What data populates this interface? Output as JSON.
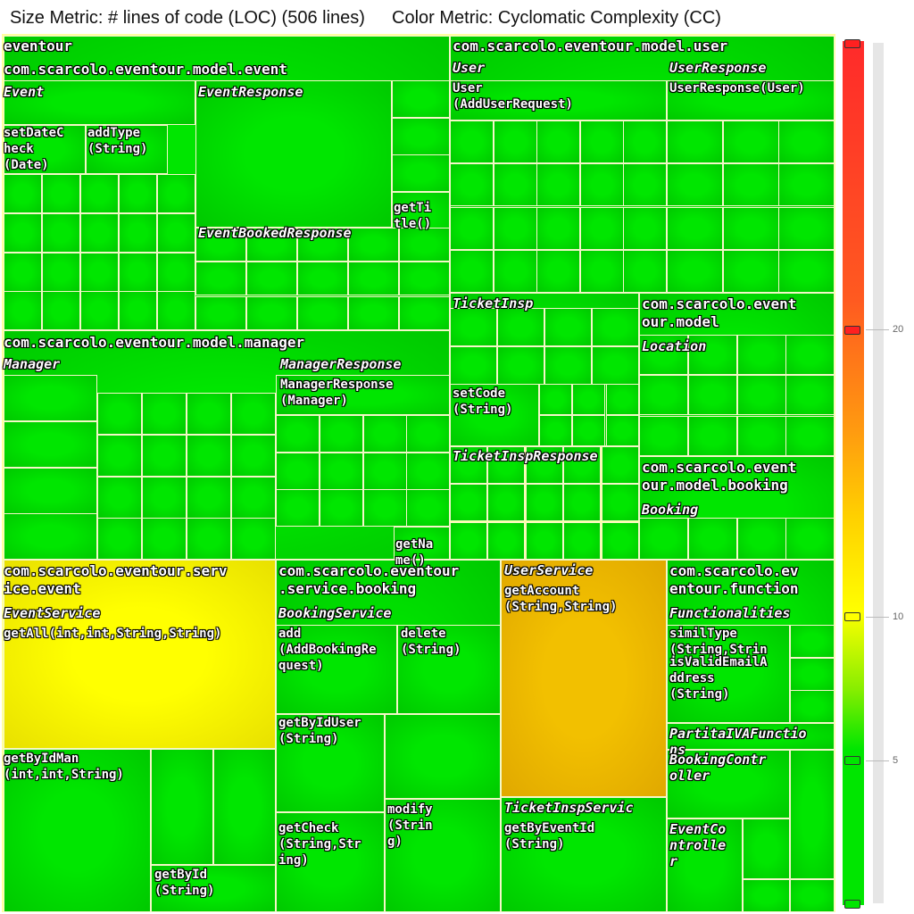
{
  "header": {
    "size_metric": "Size Metric: # lines of code (LOC) (506 lines)",
    "color_metric": "Color Metric: Cyclomatic Complexity (CC)"
  },
  "treemap": {
    "labels": {
      "root": "eventour",
      "pkg_event": "com.scarcolo.eventour.model.event",
      "cls_event": "Event",
      "cls_event_response": "EventResponse",
      "m_setdatecheck": "setDateC\nheck\n(Date)",
      "m_addtype": "addType\n(String)",
      "m_gettitle": "getTi\ntle()",
      "cls_event_booked_response": "EventBookedResponse",
      "pkg_user": "com.scarcolo.eventour.model.user",
      "cls_user": "User",
      "m_user_ctor": "User\n(AddUserRequest)",
      "cls_user_response": "UserResponse",
      "m_user_response_ctor": "UserResponse(User)",
      "pkg_manager": "com.scarcolo.eventour.model.manager",
      "cls_manager": "Manager",
      "cls_manager_response": "ManagerResponse",
      "m_manager_response_ctor": "ManagerResponse\n(Manager)",
      "m_getname": "getNa\nme()",
      "cls_ticketinsp": "TicketInsp",
      "m_setcode": "setCode\n(String)",
      "cls_ticketinsp_response": "TicketInspResponse",
      "pkg_model": "com.scarcolo.event\nour.model",
      "cls_location": "Location",
      "pkg_booking_model": "com.scarcolo.event\nour.model.booking",
      "cls_booking": "Booking",
      "pkg_service_event": "com.scarcolo.eventour.serv\nice.event",
      "cls_event_service": "EventService",
      "m_getall": "getAll(int,int,String,String)",
      "m_getbyidman": "getByIdMan\n(int,int,String)",
      "m_getbyid": "getById\n(String)",
      "pkg_service_booking": "com.scarcolo.eventour\n.service.booking",
      "cls_booking_service": "BookingService",
      "m_add": "add\n(AddBookingRe\nquest)",
      "m_delete": "delete\n(String)",
      "m_getbyiduser": "getByIdUser\n(String)",
      "m_getcheck": "getCheck\n(String,Str\ning)",
      "m_modify": "modify\n(Strin\ng)",
      "cls_user_service": "UserService",
      "m_getaccount": "getAccount\n(String,String)",
      "cls_ticketinsp_service": "TicketInspServic",
      "m_getbyeventid": "getByEventId\n(String)",
      "pkg_function": "com.scarcolo.ev\nentour.function",
      "cls_functionalities": "Functionalities",
      "m_similtype": "similType\n(String,Strin",
      "m_isvalidemail": "isValidEmailA\nddress\n(String)",
      "cls_partitaiva": "PartitaIVAFunctio\nns",
      "cls_booking_controller": "BookingContr\noller",
      "cls_event_controller": "EventCo\nntrolle\nr"
    }
  },
  "legend": {
    "tick_20": "20",
    "tick_10": "10",
    "tick_5": "5"
  },
  "colors": {
    "green": "#00e600",
    "yellow": "#ffff00",
    "orange_yellow": "#f2c000",
    "red": "#ff2a2a"
  }
}
